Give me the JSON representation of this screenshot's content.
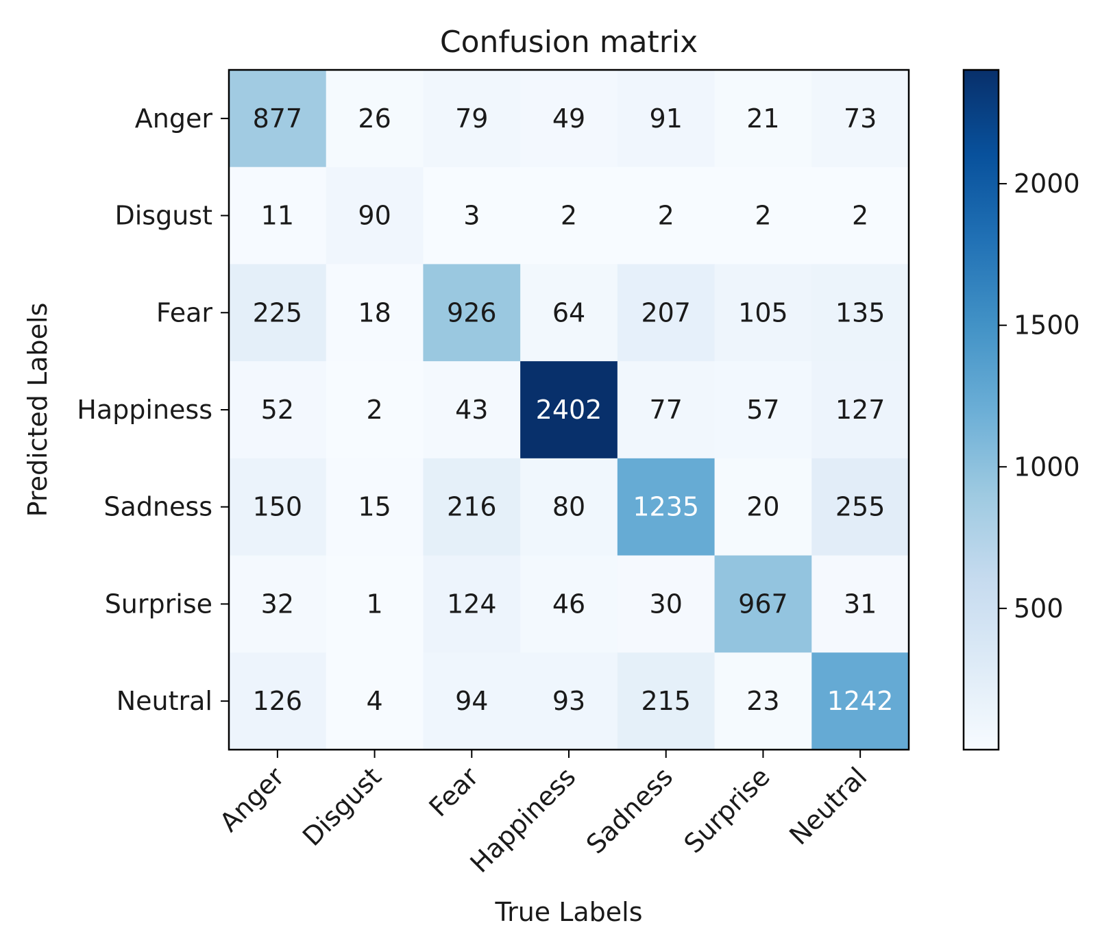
{
  "chart_data": {
    "type": "heatmap",
    "title": "Confusion matrix",
    "xlabel": "True Labels",
    "ylabel": "Predicted Labels",
    "x_categories": [
      "Anger",
      "Disgust",
      "Fear",
      "Happiness",
      "Sadness",
      "Surprise",
      "Neutral"
    ],
    "y_categories": [
      "Anger",
      "Disgust",
      "Fear",
      "Happiness",
      "Sadness",
      "Surprise",
      "Neutral"
    ],
    "matrix": [
      [
        877,
        26,
        79,
        49,
        91,
        21,
        73
      ],
      [
        11,
        90,
        3,
        2,
        2,
        2,
        2
      ],
      [
        225,
        18,
        926,
        64,
        207,
        105,
        135
      ],
      [
        52,
        2,
        43,
        2402,
        77,
        57,
        127
      ],
      [
        150,
        15,
        216,
        80,
        1235,
        20,
        255
      ],
      [
        32,
        1,
        124,
        46,
        30,
        967,
        31
      ],
      [
        126,
        4,
        94,
        93,
        215,
        23,
        1242
      ]
    ],
    "colormap": "Blues",
    "vmin": 1,
    "vmax": 2402,
    "colorbar_ticks": [
      500,
      1000,
      1500,
      2000
    ],
    "colorbar_tick_labels": [
      "500",
      "1000",
      "1500",
      "2000"
    ],
    "text_color_dark": "#1a1a1a",
    "text_color_light": "#ffffff"
  }
}
